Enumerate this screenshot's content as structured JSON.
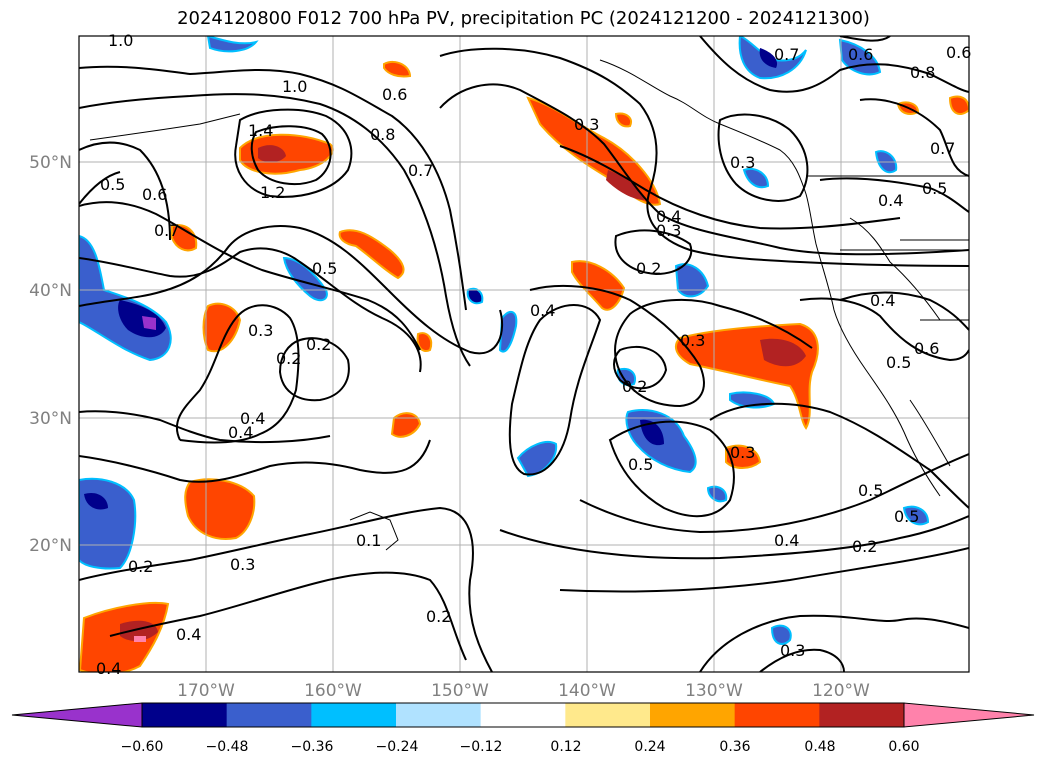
{
  "title": "2024120800 F012 700 hPa PV, precipitation PC (2024121200 - 2024121300)",
  "map": {
    "lon_ticks": [
      "170°W",
      "160°W",
      "150°W",
      "140°W",
      "130°W",
      "120°W"
    ],
    "lat_ticks": [
      "50°N",
      "40°N",
      "30°N",
      "20°N"
    ],
    "grid": true,
    "contour_labels": [
      "1.0",
      "1.0",
      "1.4",
      "1.2",
      "0.6",
      "0.8",
      "0.7",
      "0.5",
      "0.6",
      "0.7",
      "0.5",
      "0.3",
      "0.2",
      "0.4",
      "0.4",
      "0.3",
      "0.2",
      "0.4",
      "0.3",
      "0.2",
      "0.3",
      "0.2",
      "0.4",
      "0.7",
      "0.8",
      "0.6",
      "0.5",
      "0.4",
      "0.4",
      "0.6",
      "0.5",
      "0.3",
      "0.2",
      "0.5",
      "0.5",
      "0.4",
      "0.5",
      "0.3",
      "0.2",
      "0.2",
      "0.1",
      "0.3",
      "0.4",
      "0.3",
      "0.4",
      "0.7",
      "0.6"
    ]
  },
  "colorbar": {
    "ticks": [
      "−0.60",
      "−0.48",
      "−0.36",
      "−0.24",
      "−0.12",
      "0.12",
      "0.24",
      "0.36",
      "0.48",
      "0.60"
    ],
    "colors": [
      "#9932cc",
      "#00008b",
      "#3a5fcd",
      "#00bfff",
      "#b0e2ff",
      "#ffffff",
      "#ffe98c",
      "#ffa500",
      "#ff4500",
      "#b22222",
      "#ff82ab"
    ]
  }
}
